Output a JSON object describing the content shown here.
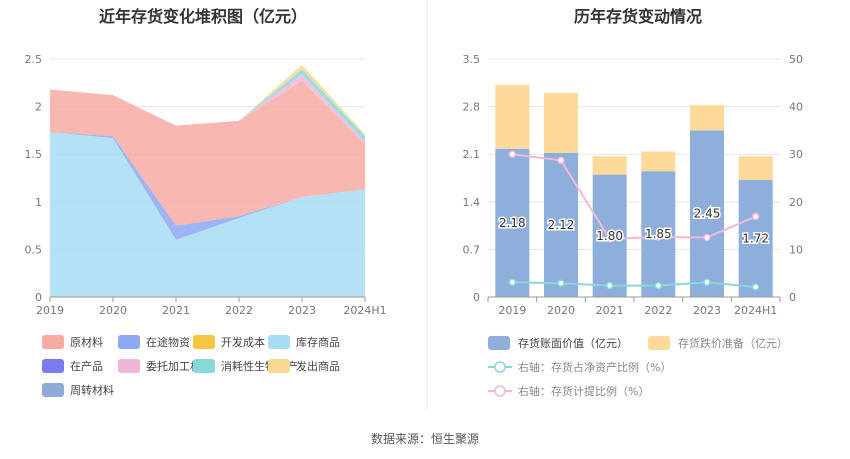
{
  "source_text": "数据来源：恒生聚源",
  "chart_data": [
    {
      "type": "area",
      "title": "近年存货变化堆积图（亿元）",
      "categories": [
        "2019",
        "2020",
        "2021",
        "2022",
        "2023",
        "2024H1"
      ],
      "ylim": [
        0,
        2.5
      ],
      "yticks": [
        "0",
        "0.5",
        "1",
        "1.5",
        "2",
        "2.5"
      ],
      "grid": true,
      "legend_position": "bottom",
      "series": [
        {
          "name": "原材料",
          "color": "#f8aaa3",
          "values": [
            0.45,
            0.43,
            1.05,
            1.0,
            1.22,
            0.47
          ]
        },
        {
          "name": "在途物资",
          "color": "#8ea7f2",
          "values": [
            0.0,
            0.02,
            0.15,
            0.02,
            0.0,
            0.0
          ]
        },
        {
          "name": "开发成本",
          "color": "#f7c744",
          "values": [
            0.0,
            0.0,
            0.0,
            0.0,
            0.0,
            0.0
          ]
        },
        {
          "name": "库存商品",
          "color": "#a8dcf6",
          "values": [
            1.73,
            1.67,
            0.6,
            0.83,
            1.05,
            1.13
          ]
        },
        {
          "name": "在产品",
          "color": "#7a7cf0",
          "values": [
            0.0,
            0.0,
            0.0,
            0.0,
            0.0,
            0.0
          ]
        },
        {
          "name": "委托加工材料",
          "color": "#f0b6d8",
          "values": [
            0.0,
            0.0,
            0.0,
            0.0,
            0.07,
            0.03
          ]
        },
        {
          "name": "消耗性生物资产",
          "color": "#86d8da",
          "values": [
            0.0,
            0.0,
            0.0,
            0.0,
            0.05,
            0.06
          ]
        },
        {
          "name": "发出商品",
          "color": "#fbd892",
          "values": [
            0.0,
            0.0,
            0.0,
            0.0,
            0.05,
            0.02
          ]
        },
        {
          "name": "周转材料",
          "color": "#8faad8",
          "values": [
            0.0,
            0.0,
            0.0,
            0.0,
            0.0,
            0.0
          ]
        }
      ]
    },
    {
      "type": "bar",
      "title": "历年存货变动情况",
      "categories": [
        "2019",
        "2020",
        "2021",
        "2022",
        "2023",
        "2024H1"
      ],
      "ylim_left": [
        0,
        3.5
      ],
      "yticks_left": [
        "0",
        "0.7",
        "1.4",
        "2.1",
        "2.8",
        "3.5"
      ],
      "ylim_right": [
        0,
        50
      ],
      "yticks_right": [
        "0",
        "10",
        "20",
        "30",
        "40",
        "50"
      ],
      "grid": true,
      "legend_position": "bottom",
      "series": [
        {
          "name": "存货账面价值（亿元）",
          "color": "#8eaedb",
          "kind": "bar",
          "axis": "left",
          "values": [
            2.18,
            2.12,
            1.8,
            1.85,
            2.45,
            1.72
          ],
          "labels": [
            "2.18",
            "2.12",
            "1.80",
            "1.85",
            "2.45",
            "1.72"
          ]
        },
        {
          "name": "存货跌价准备（亿元）",
          "color": "#fdd99a",
          "kind": "bar",
          "axis": "left",
          "values": [
            0.94,
            0.88,
            0.27,
            0.29,
            0.37,
            0.35
          ]
        },
        {
          "name": "右轴：存货占净资产比例（%）",
          "color": "#86d8da",
          "kind": "line",
          "axis": "right",
          "values": [
            3.1,
            2.9,
            2.4,
            2.4,
            3.1,
            2.1
          ]
        },
        {
          "name": "右轴：存货计提比例（%）",
          "color": "#f4b8d8",
          "kind": "line",
          "axis": "right",
          "values": [
            30.0,
            28.7,
            12.2,
            12.6,
            12.5,
            16.9
          ]
        }
      ]
    }
  ]
}
